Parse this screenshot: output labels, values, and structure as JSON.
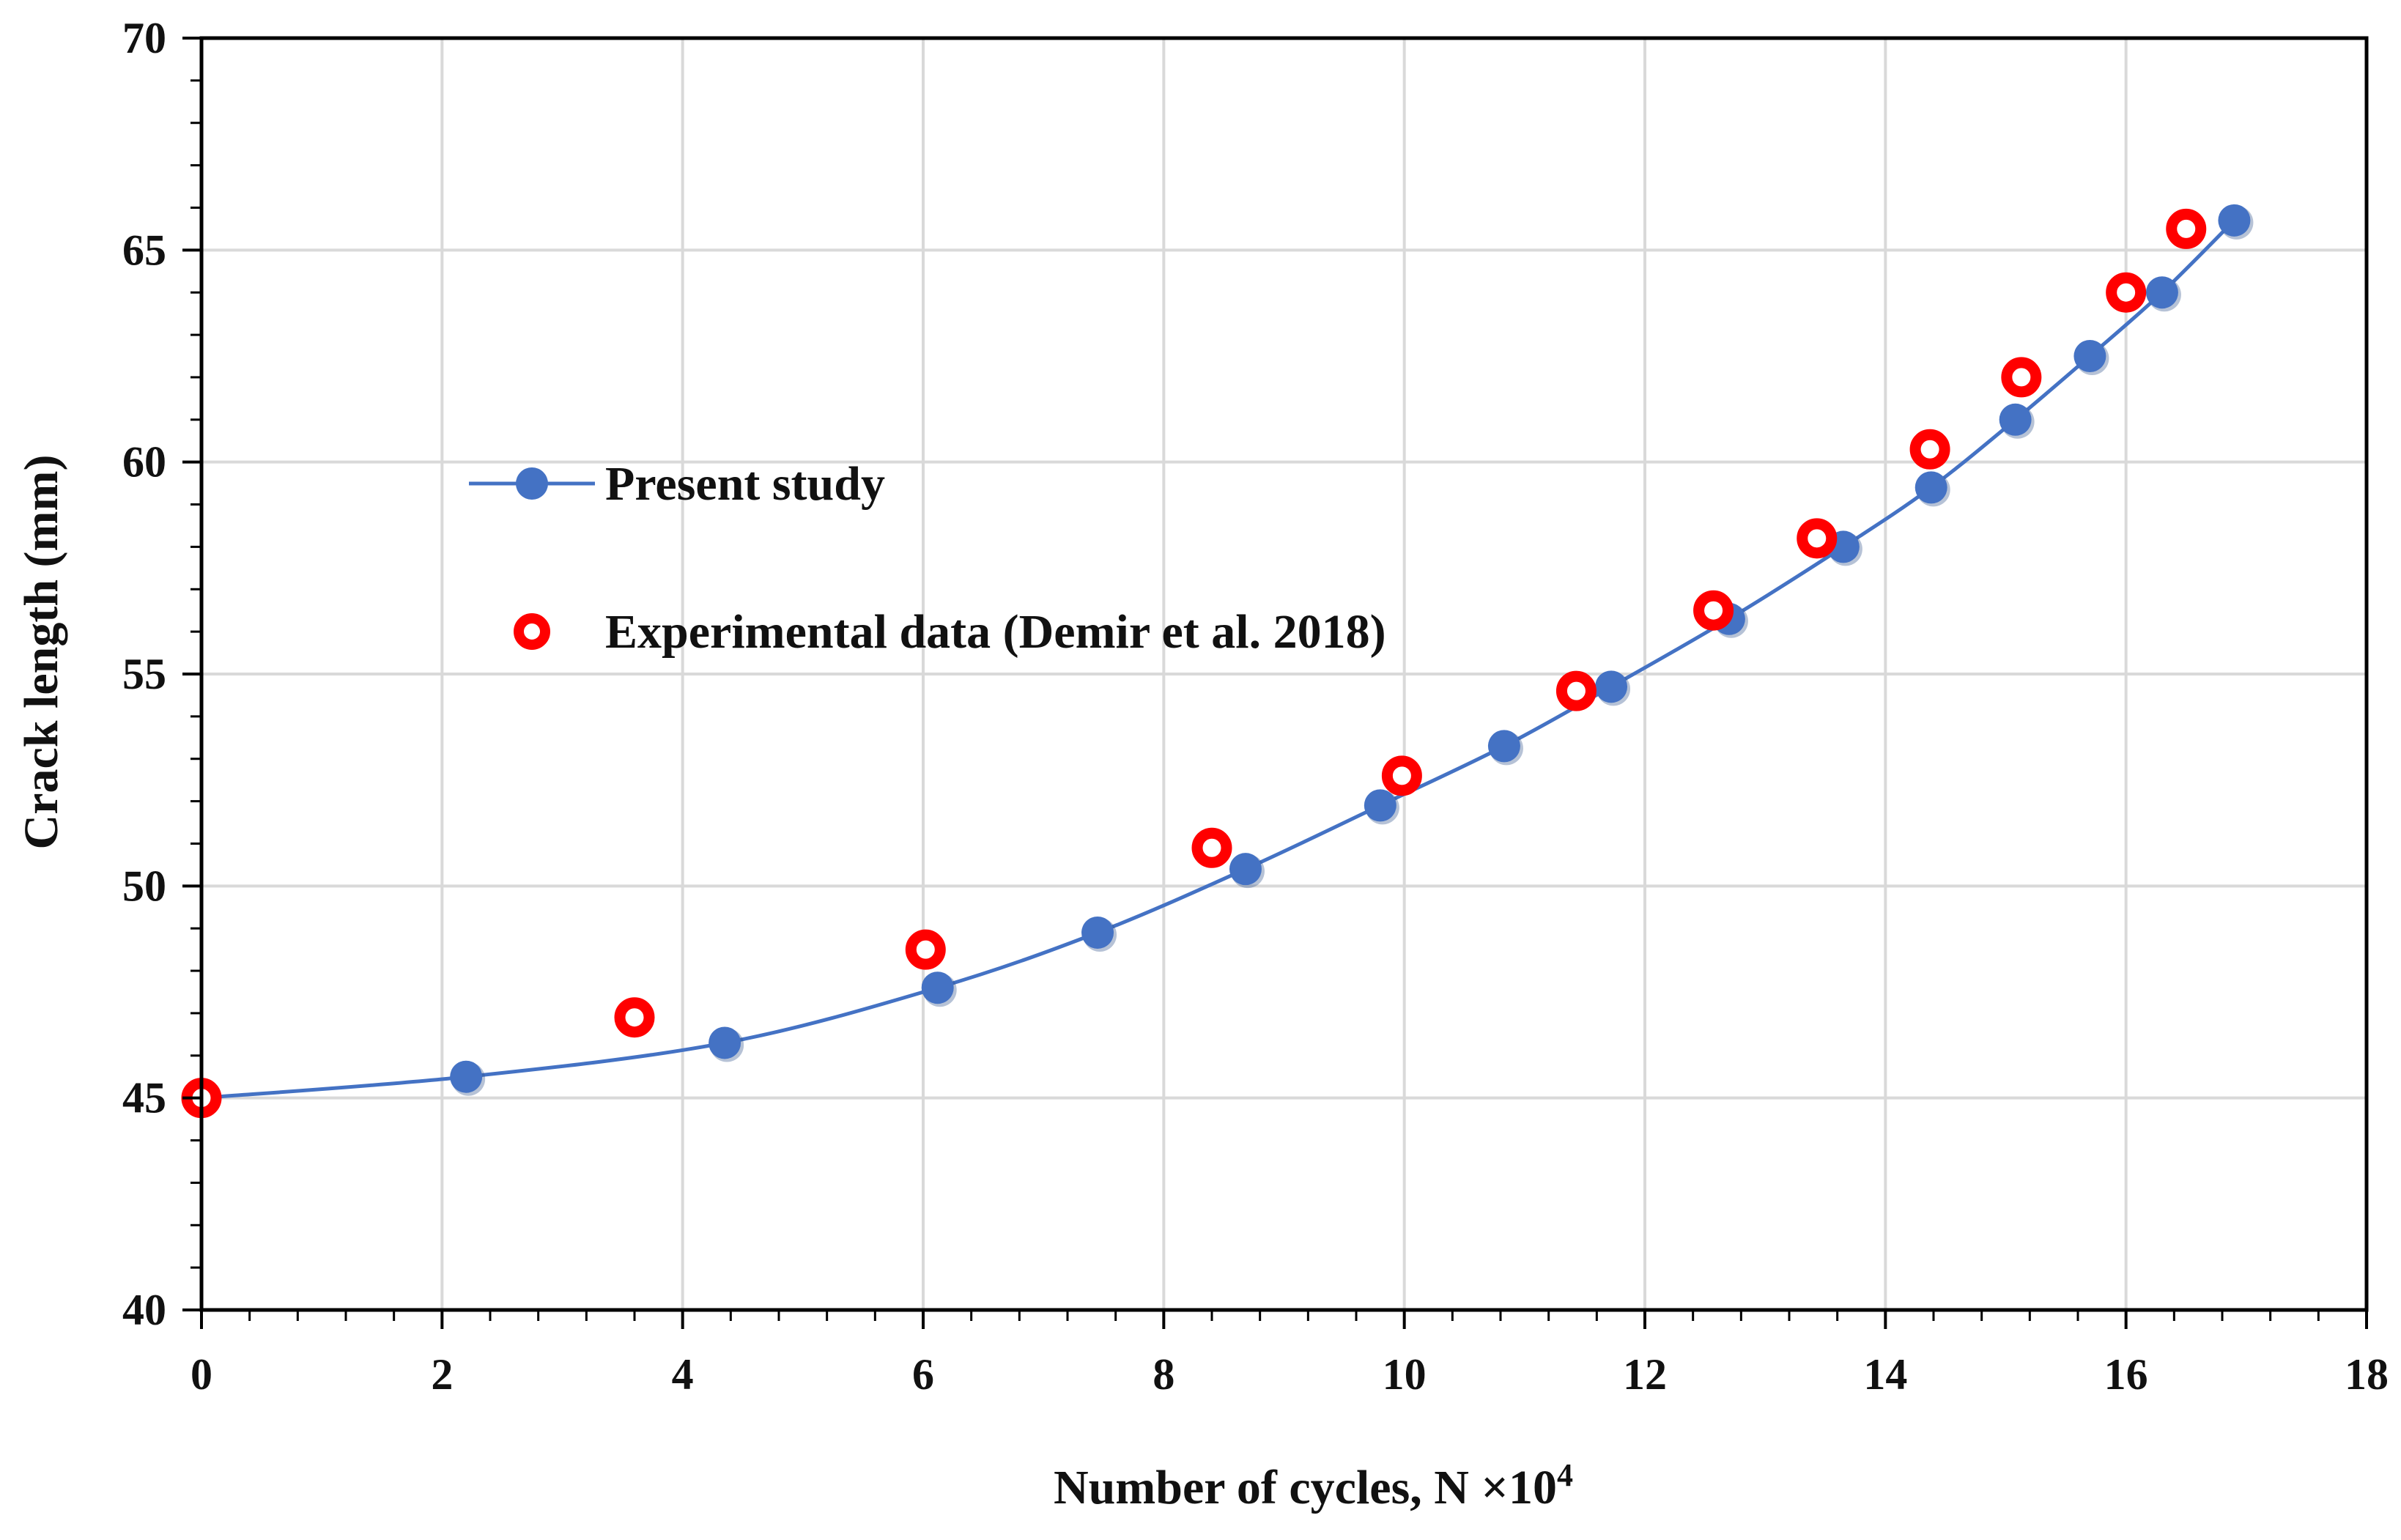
{
  "chart_data": {
    "type": "scatter",
    "title": "",
    "xlabel": "Number of cycles, N ×10",
    "xlabel_superscript": "4",
    "ylabel": "Crack length (mm)",
    "xlim": [
      0,
      18
    ],
    "ylim": [
      40,
      70
    ],
    "xticks": [
      0,
      2,
      4,
      6,
      8,
      10,
      12,
      14,
      16,
      18
    ],
    "yticks": [
      40,
      45,
      50,
      55,
      60,
      65,
      70
    ],
    "x_minor_step": 0.4,
    "y_minor_step": 1,
    "grid": true,
    "legend_position": "upper-left",
    "series": [
      {
        "name": "Present study",
        "marker": "filled-circle",
        "line": "smooth",
        "color": "#4472C4",
        "points": [
          [
            0,
            45.0
          ],
          [
            2.2,
            45.5
          ],
          [
            4.35,
            46.3
          ],
          [
            6.12,
            47.6
          ],
          [
            7.45,
            48.9
          ],
          [
            8.68,
            50.4
          ],
          [
            9.8,
            51.9
          ],
          [
            10.83,
            53.3
          ],
          [
            11.72,
            54.7
          ],
          [
            12.7,
            56.3
          ],
          [
            13.65,
            58.0
          ],
          [
            14.38,
            59.4
          ],
          [
            15.08,
            61.0
          ],
          [
            15.7,
            62.5
          ],
          [
            16.3,
            64.0
          ],
          [
            16.9,
            65.7
          ]
        ]
      },
      {
        "name": "Experimental data (Demir et al. 2018)",
        "marker": "hollow-circle",
        "line": "none",
        "color": "#FF0000",
        "points": [
          [
            0,
            45.0
          ],
          [
            3.6,
            46.9
          ],
          [
            6.02,
            48.5
          ],
          [
            8.4,
            50.9
          ],
          [
            9.98,
            52.6
          ],
          [
            11.43,
            54.6
          ],
          [
            12.57,
            56.5
          ],
          [
            13.43,
            58.2
          ],
          [
            14.37,
            60.3
          ],
          [
            15.13,
            62.0
          ],
          [
            16.0,
            64.0
          ],
          [
            16.5,
            65.5
          ]
        ]
      }
    ]
  }
}
